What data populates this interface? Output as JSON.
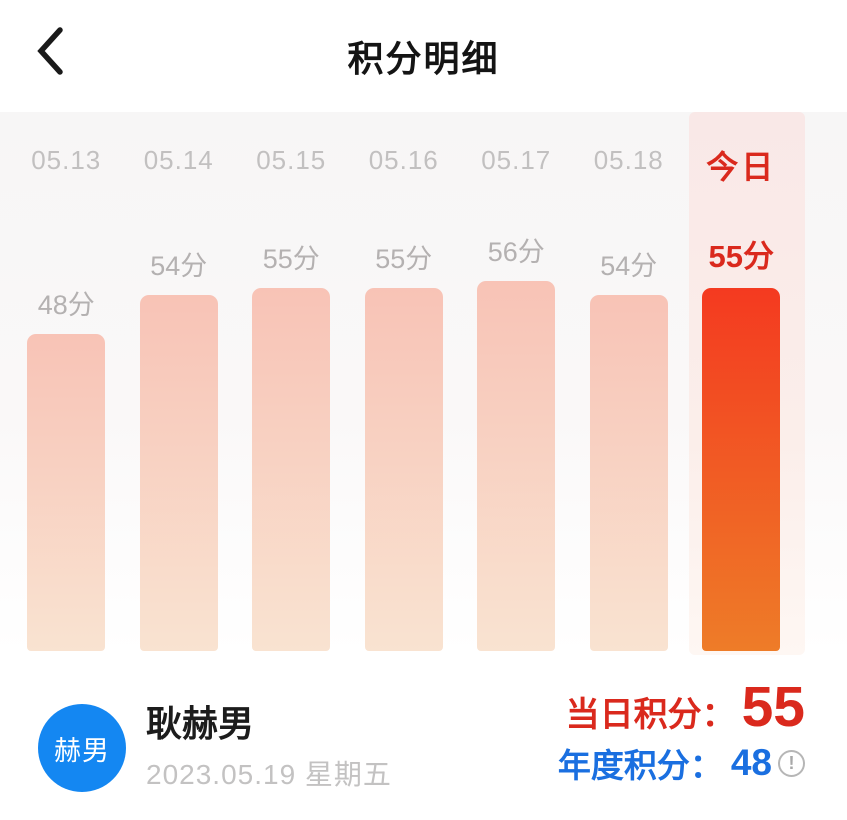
{
  "header": {
    "title": "积分明细"
  },
  "chart_data": {
    "type": "bar",
    "title": "",
    "xlabel": "",
    "ylabel": "",
    "categories": [
      "05.13",
      "05.14",
      "05.15",
      "05.16",
      "05.17",
      "05.18",
      "今日"
    ],
    "values": [
      48,
      54,
      55,
      55,
      56,
      54,
      55
    ],
    "value_suffix": "分",
    "highlight_index": 6,
    "ylim": [
      0,
      60
    ],
    "grid": false,
    "legend": false
  },
  "user": {
    "avatar_text": "赫男",
    "name": "耿赫男",
    "date": "2023.05.19 星期五"
  },
  "summary": {
    "daily_label": "当日积分：",
    "daily_value": "55",
    "annual_label": "年度积分：",
    "annual_value": "48",
    "info_icon": "!"
  },
  "colors": {
    "accent_red": "#da291d",
    "accent_blue": "#1a6fe0",
    "avatar_blue": "#1487f2",
    "today_bar_top": "#f43a20",
    "today_bar_bottom": "#ee7c28",
    "bar_top": "#f8c3b6",
    "bar_bottom": "#f9e3d1",
    "date_label_gray": "#c2c0c0",
    "score_label_gray": "#b4b1b1"
  }
}
